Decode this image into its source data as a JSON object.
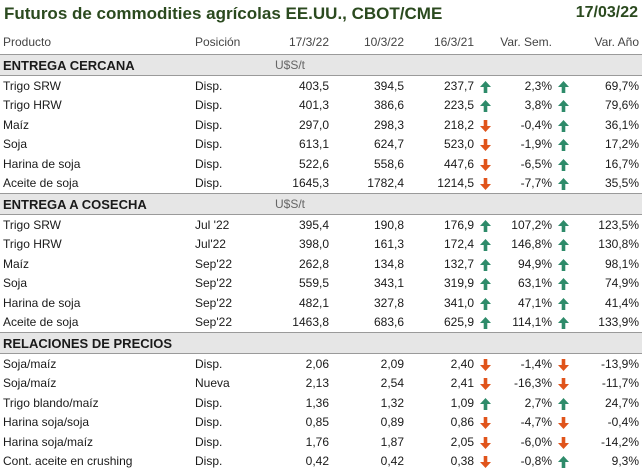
{
  "header": {
    "title": "Futuros de commodities agrícolas EE.UU., CBOT/CME",
    "date": "17/03/22"
  },
  "columns": [
    "Producto",
    "Posición",
    "17/3/22",
    "10/3/22",
    "16/3/21",
    "Var. Sem.",
    "Var. Año"
  ],
  "colors": {
    "up": "#2e8b6a",
    "down": "#e0541b",
    "title": "#2b4a1f",
    "section_bg": "#e6e6e6"
  },
  "icons": {
    "up": "arrow-up-icon",
    "down": "arrow-down-icon"
  },
  "sections": [
    {
      "title": "ENTREGA CERCANA",
      "unit": "U$S/t",
      "rows": [
        {
          "producto": "Trigo SRW",
          "posicion": "Disp.",
          "v1": "403,5",
          "v2": "394,5",
          "v3": "237,7",
          "i1": "up",
          "ws": "2,3%",
          "i2": "up",
          "wa": "69,7%"
        },
        {
          "producto": "Trigo HRW",
          "posicion": "Disp.",
          "v1": "401,3",
          "v2": "386,6",
          "v3": "223,5",
          "i1": "up",
          "ws": "3,8%",
          "i2": "up",
          "wa": "79,6%"
        },
        {
          "producto": "Maíz",
          "posicion": "Disp.",
          "v1": "297,0",
          "v2": "298,3",
          "v3": "218,2",
          "i1": "down",
          "ws": "-0,4%",
          "i2": "up",
          "wa": "36,1%"
        },
        {
          "producto": "Soja",
          "posicion": "Disp.",
          "v1": "613,1",
          "v2": "624,7",
          "v3": "523,0",
          "i1": "down",
          "ws": "-1,9%",
          "i2": "up",
          "wa": "17,2%"
        },
        {
          "producto": "Harina de soja",
          "posicion": "Disp.",
          "v1": "522,6",
          "v2": "558,6",
          "v3": "447,6",
          "i1": "down",
          "ws": "-6,5%",
          "i2": "up",
          "wa": "16,7%"
        },
        {
          "producto": "Aceite de soja",
          "posicion": "Disp.",
          "v1": "1645,3",
          "v2": "1782,4",
          "v3": "1214,5",
          "i1": "down",
          "ws": "-7,7%",
          "i2": "up",
          "wa": "35,5%"
        }
      ]
    },
    {
      "title": "ENTREGA A COSECHA",
      "unit": "U$S/t",
      "rows": [
        {
          "producto": "Trigo SRW",
          "posicion": "Jul '22",
          "v1": "395,4",
          "v2": "190,8",
          "v3": "176,9",
          "i1": "up",
          "ws": "107,2%",
          "i2": "up",
          "wa": "123,5%"
        },
        {
          "producto": "Trigo HRW",
          "posicion": "Jul'22",
          "v1": "398,0",
          "v2": "161,3",
          "v3": "172,4",
          "i1": "up",
          "ws": "146,8%",
          "i2": "up",
          "wa": "130,8%"
        },
        {
          "producto": "Maíz",
          "posicion": "Sep'22",
          "v1": "262,8",
          "v2": "134,8",
          "v3": "132,7",
          "i1": "up",
          "ws": "94,9%",
          "i2": "up",
          "wa": "98,1%"
        },
        {
          "producto": "Soja",
          "posicion": "Sep'22",
          "v1": "559,5",
          "v2": "343,1",
          "v3": "319,9",
          "i1": "up",
          "ws": "63,1%",
          "i2": "up",
          "wa": "74,9%"
        },
        {
          "producto": "Harina de soja",
          "posicion": "Sep'22",
          "v1": "482,1",
          "v2": "327,8",
          "v3": "341,0",
          "i1": "up",
          "ws": "47,1%",
          "i2": "up",
          "wa": "41,4%"
        },
        {
          "producto": "Aceite de soja",
          "posicion": "Sep'22",
          "v1": "1463,8",
          "v2": "683,6",
          "v3": "625,9",
          "i1": "up",
          "ws": "114,1%",
          "i2": "up",
          "wa": "133,9%"
        }
      ]
    },
    {
      "title": "RELACIONES DE PRECIOS",
      "unit": "",
      "rows": [
        {
          "producto": "Soja/maíz",
          "posicion": "Disp.",
          "v1": "2,06",
          "v2": "2,09",
          "v3": "2,40",
          "i1": "down",
          "ws": "-1,4%",
          "i2": "down",
          "wa": "-13,9%"
        },
        {
          "producto": "Soja/maíz",
          "posicion": "Nueva",
          "v1": "2,13",
          "v2": "2,54",
          "v3": "2,41",
          "i1": "down",
          "ws": "-16,3%",
          "i2": "down",
          "wa": "-11,7%"
        },
        {
          "producto": "Trigo blando/maíz",
          "posicion": "Disp.",
          "v1": "1,36",
          "v2": "1,32",
          "v3": "1,09",
          "i1": "up",
          "ws": "2,7%",
          "i2": "up",
          "wa": "24,7%"
        },
        {
          "producto": "Harina soja/soja",
          "posicion": "Disp.",
          "v1": "0,85",
          "v2": "0,89",
          "v3": "0,86",
          "i1": "down",
          "ws": "-4,7%",
          "i2": "down",
          "wa": "-0,4%"
        },
        {
          "producto": "Harina soja/maíz",
          "posicion": "Disp.",
          "v1": "1,76",
          "v2": "1,87",
          "v3": "2,05",
          "i1": "down",
          "ws": "-6,0%",
          "i2": "down",
          "wa": "-14,2%"
        },
        {
          "producto": "Cont. aceite en crushing",
          "posicion": "Disp.",
          "v1": "0,42",
          "v2": "0,42",
          "v3": "0,38",
          "i1": "down",
          "ws": "-0,8%",
          "i2": "up",
          "wa": "9,3%"
        }
      ]
    }
  ]
}
